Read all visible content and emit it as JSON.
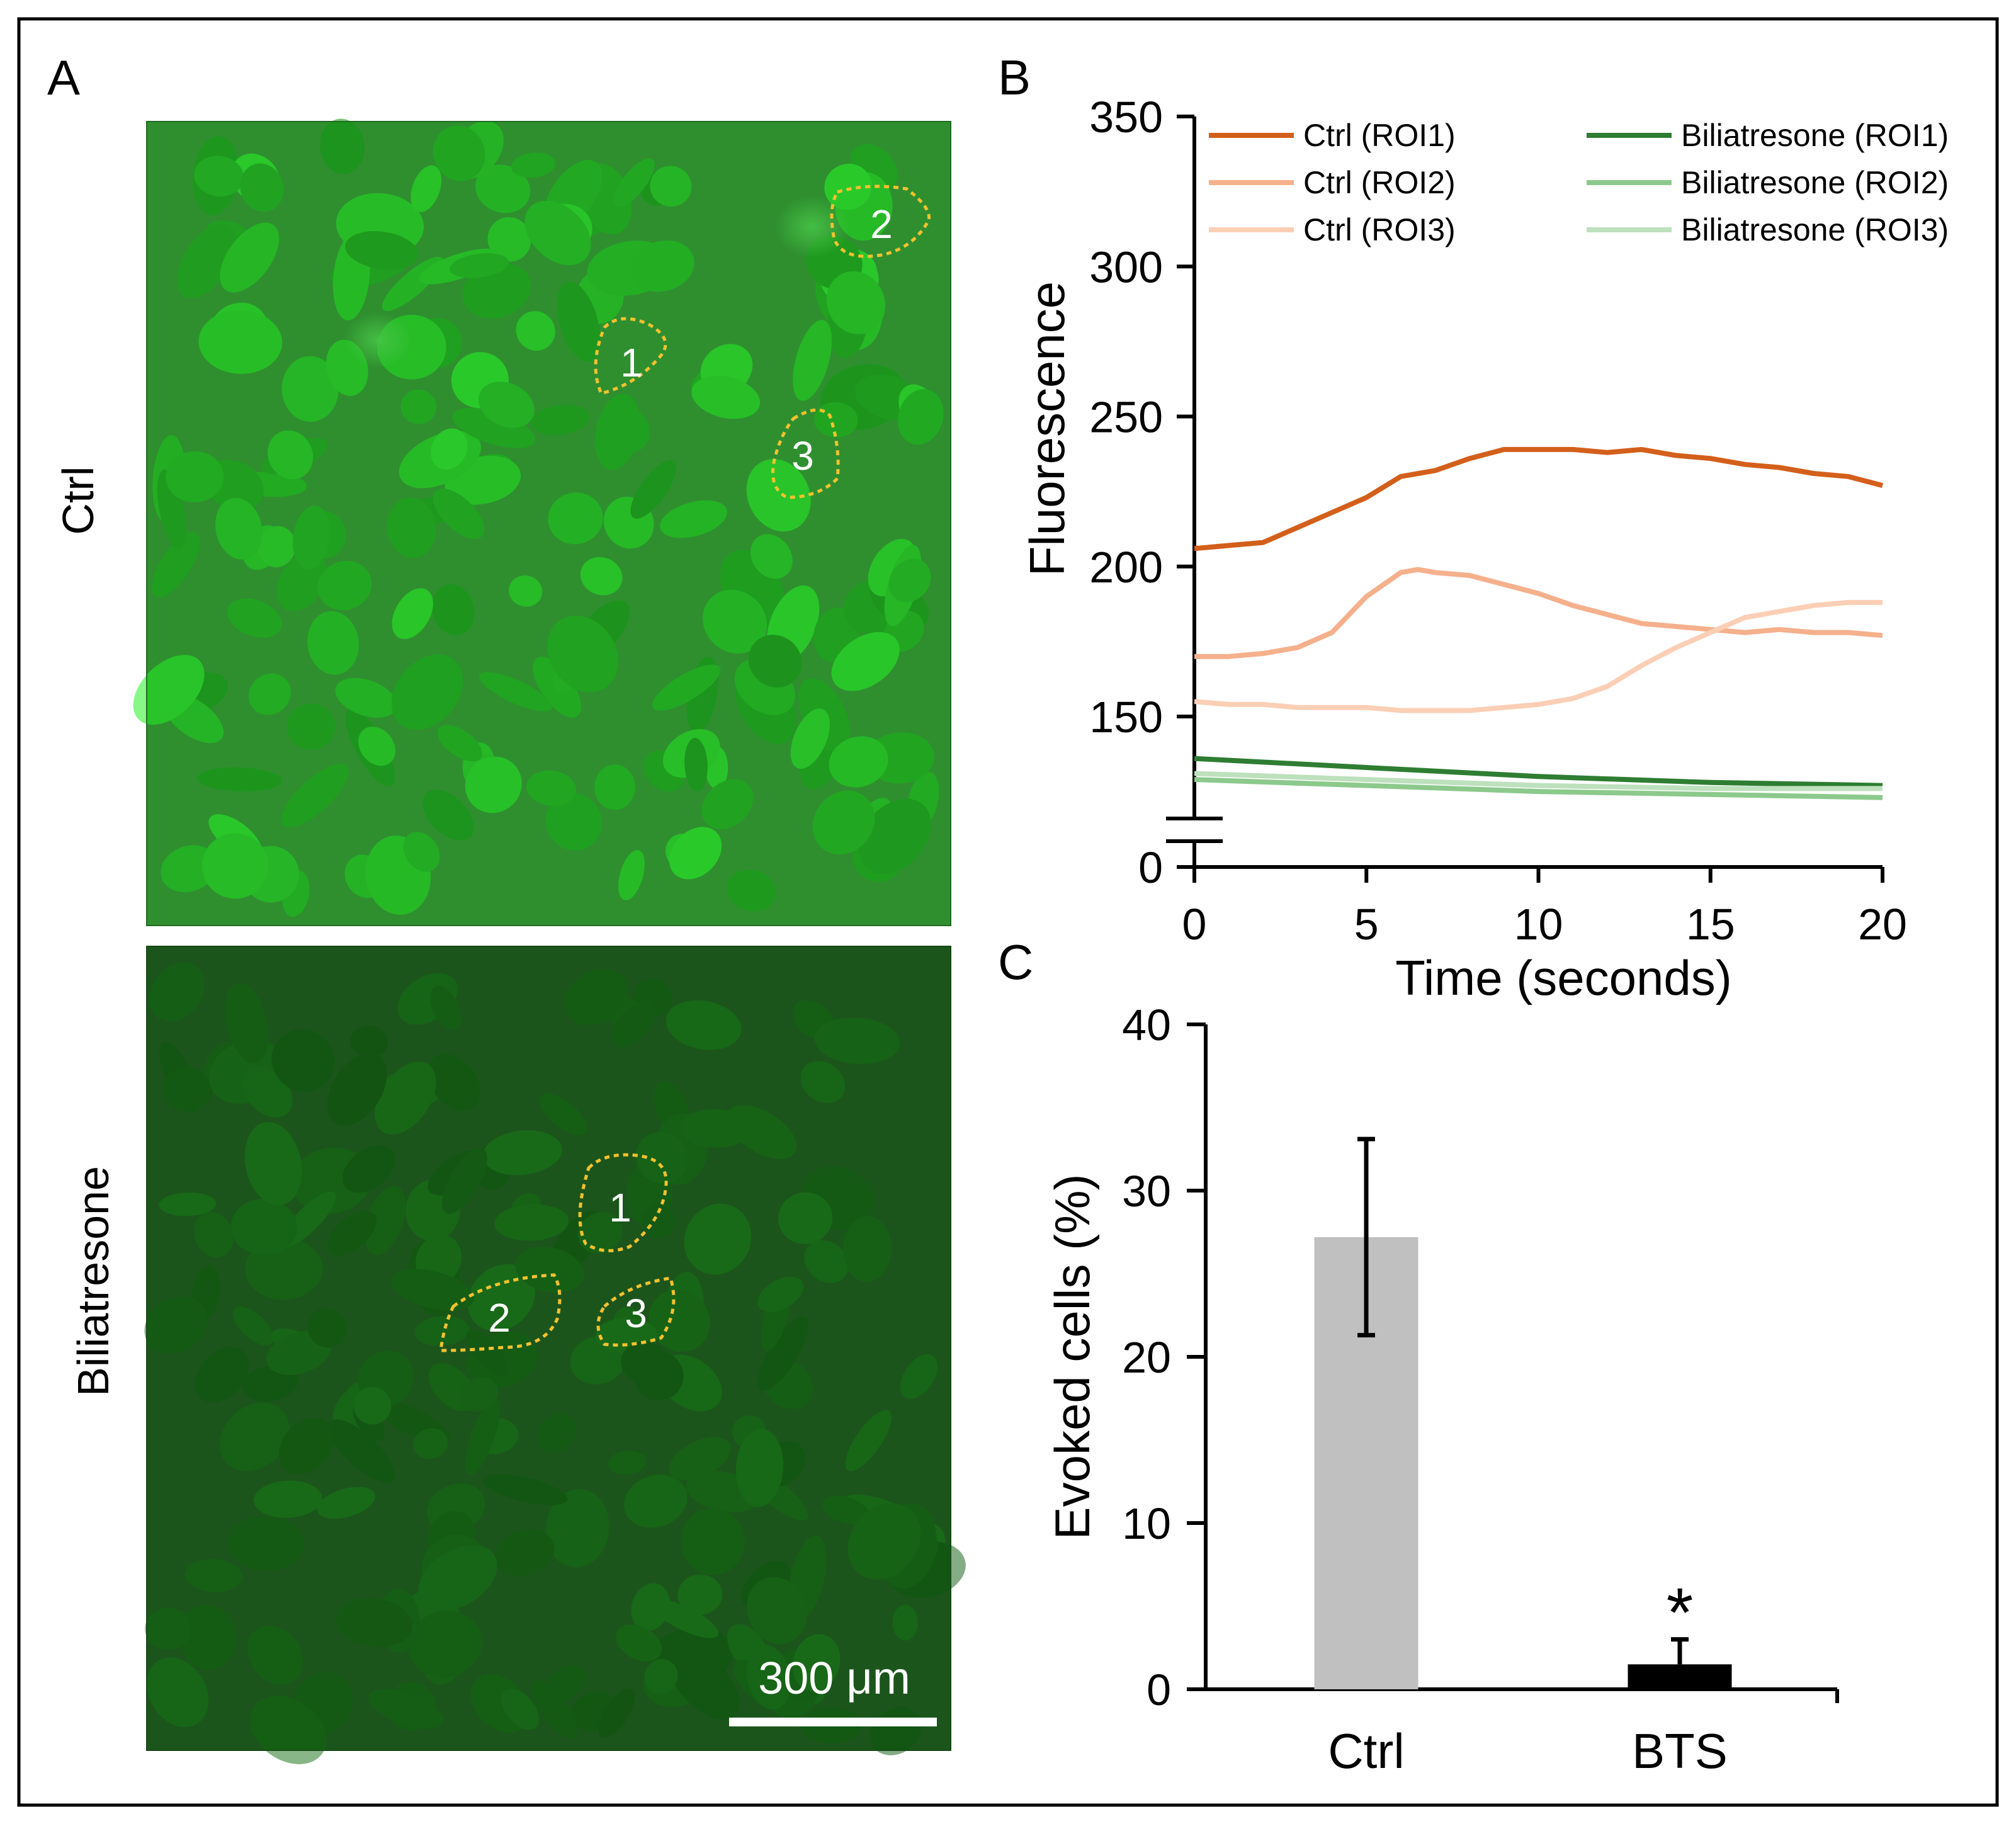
{
  "panel_a": {
    "label": "A",
    "ctrl_label": "Ctrl",
    "bts_label": "Biliatresone",
    "ctrl_rois": [
      "1",
      "2",
      "3"
    ],
    "bts_rois": [
      "1",
      "2",
      "3"
    ],
    "scale_bar": "300 μm"
  },
  "chart_data": [
    {
      "panel": "B",
      "type": "line",
      "xlabel": "Time (seconds)",
      "ylabel": "Fluorescence",
      "xlim": [
        0,
        20
      ],
      "x_ticks": [
        0,
        5,
        10,
        15,
        20
      ],
      "y_ticks": [
        0,
        150,
        200,
        250,
        300,
        350
      ],
      "y_axis_break": true,
      "legend_position": "top",
      "series": [
        {
          "name": "Ctrl (ROI1)",
          "color": "#d35f1b",
          "x": [
            0,
            1,
            2,
            3,
            4,
            5,
            6,
            7,
            8,
            9,
            10,
            11,
            12,
            13,
            14,
            15,
            16,
            17,
            18,
            19,
            20
          ],
          "y": [
            206,
            207,
            208,
            213,
            218,
            223,
            230,
            232,
            236,
            239,
            239,
            239,
            238,
            239,
            237,
            236,
            234,
            233,
            231,
            230,
            227
          ]
        },
        {
          "name": "Ctrl (ROI2)",
          "color": "#f5b08c",
          "x": [
            0,
            1,
            2,
            3,
            4,
            5,
            6,
            6.5,
            7,
            8,
            9,
            10,
            11,
            12,
            13,
            14,
            15,
            16,
            17,
            18,
            19,
            20
          ],
          "y": [
            170,
            170,
            171,
            173,
            178,
            190,
            198,
            199,
            198,
            197,
            194,
            191,
            187,
            184,
            181,
            180,
            179,
            178,
            179,
            178,
            178,
            177
          ]
        },
        {
          "name": "Ctrl (ROI3)",
          "color": "#fbcfb5",
          "x": [
            0,
            1,
            2,
            3,
            4,
            5,
            6,
            7,
            8,
            9,
            10,
            11,
            12,
            13,
            14,
            15,
            16,
            17,
            18,
            19,
            20
          ],
          "y": [
            155,
            154,
            154,
            153,
            153,
            153,
            152,
            152,
            152,
            153,
            154,
            156,
            160,
            167,
            173,
            178,
            183,
            185,
            187,
            188,
            188
          ]
        },
        {
          "name": "Biliatresone (ROI1)",
          "color": "#2e7d32",
          "x": [
            0,
            5,
            10,
            15,
            20
          ],
          "y": [
            136,
            133,
            130,
            128,
            127
          ]
        },
        {
          "name": "Biliatresone (ROI2)",
          "color": "#8cc98c",
          "x": [
            0,
            5,
            10,
            15,
            20
          ],
          "y": [
            129,
            127,
            125,
            124,
            123
          ]
        },
        {
          "name": "Biliatresone (ROI3)",
          "color": "#bde0bd",
          "x": [
            0,
            5,
            10,
            15,
            20
          ],
          "y": [
            131,
            129,
            127,
            126,
            126
          ]
        }
      ]
    },
    {
      "panel": "C",
      "type": "bar",
      "categories": [
        "Ctrl",
        "BTS"
      ],
      "values": [
        27.2,
        1.5
      ],
      "errors": [
        5.9,
        1.5
      ],
      "colors": [
        "#c0c0c0",
        "#000000"
      ],
      "ylabel": "Evoked cells (%)",
      "ylim": [
        0,
        40
      ],
      "y_ticks": [
        0,
        10,
        20,
        30,
        40
      ],
      "annotations": [
        {
          "category": "BTS",
          "text": "*"
        }
      ]
    }
  ]
}
